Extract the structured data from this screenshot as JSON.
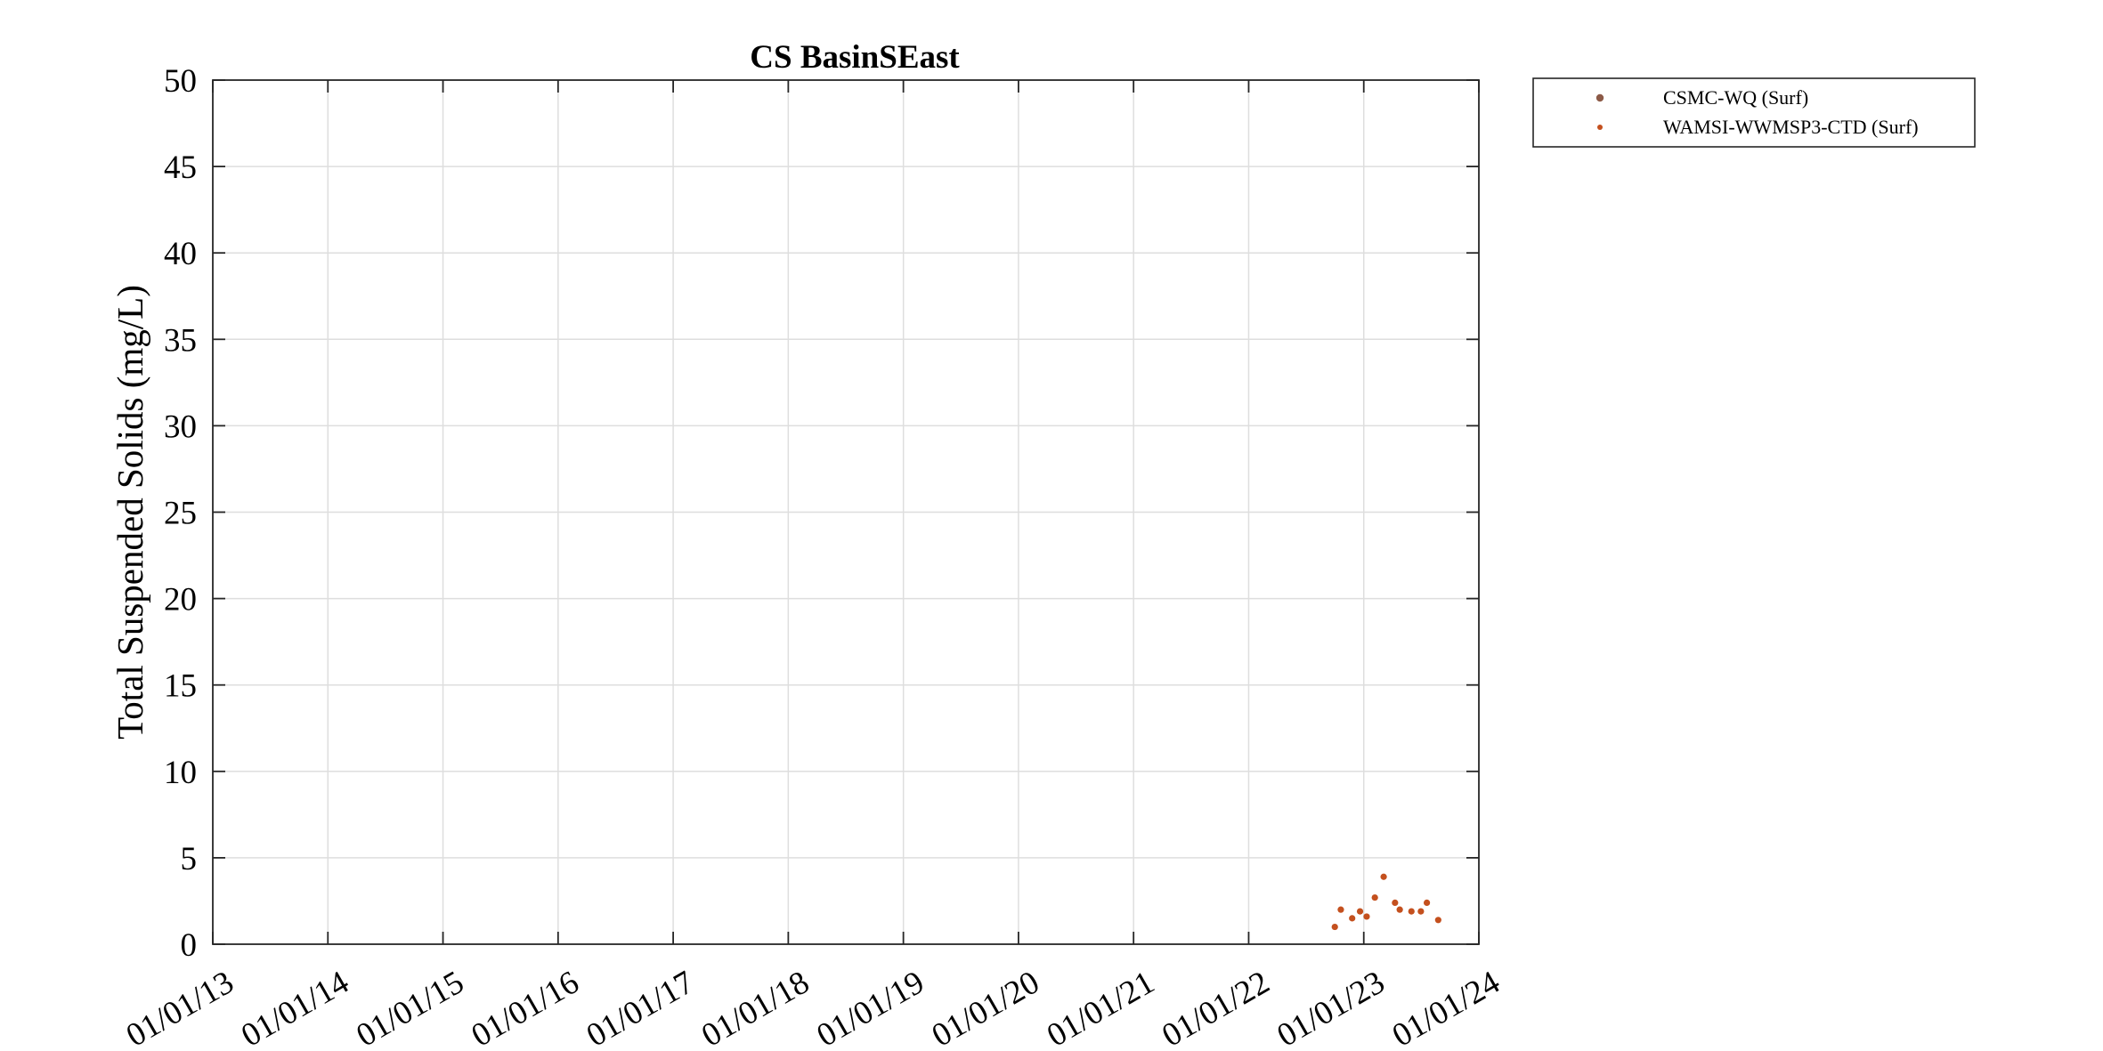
{
  "chart_data": {
    "type": "scatter",
    "title": "CS BasinSEast",
    "xlabel": "",
    "ylabel": "Total Suspended Solids (mg/L)",
    "ylim": [
      0,
      50
    ],
    "xlim": [
      "2013-01-01",
      "2024-01-01"
    ],
    "grid": true,
    "legend_position": "outside-top-right",
    "yticks": [
      "0",
      "5",
      "10",
      "15",
      "20",
      "25",
      "30",
      "35",
      "40",
      "45",
      "50"
    ],
    "xticks": [
      "01/01/13",
      "01/01/14",
      "01/01/15",
      "01/01/16",
      "01/01/17",
      "01/01/18",
      "01/01/19",
      "01/01/20",
      "01/01/21",
      "01/01/22",
      "01/01/23",
      "01/01/24"
    ],
    "series": [
      {
        "name": "CSMC-WQ (Surf)",
        "color": "#8c5a47",
        "points": []
      },
      {
        "name": "WAMSI-WWMSP3-CTD (Surf)",
        "color": "#c4501e",
        "points": [
          {
            "x": "2022-10-01",
            "y": 1.0
          },
          {
            "x": "2022-10-20",
            "y": 2.0
          },
          {
            "x": "2022-11-25",
            "y": 1.5
          },
          {
            "x": "2022-12-20",
            "y": 1.9
          },
          {
            "x": "2023-01-10",
            "y": 1.6
          },
          {
            "x": "2023-02-05",
            "y": 2.7
          },
          {
            "x": "2023-03-05",
            "y": 3.9
          },
          {
            "x": "2023-04-10",
            "y": 2.4
          },
          {
            "x": "2023-04-25",
            "y": 2.0
          },
          {
            "x": "2023-06-01",
            "y": 1.9
          },
          {
            "x": "2023-07-01",
            "y": 1.9
          },
          {
            "x": "2023-07-20",
            "y": 2.4
          },
          {
            "x": "2023-08-25",
            "y": 1.4
          }
        ]
      }
    ]
  }
}
